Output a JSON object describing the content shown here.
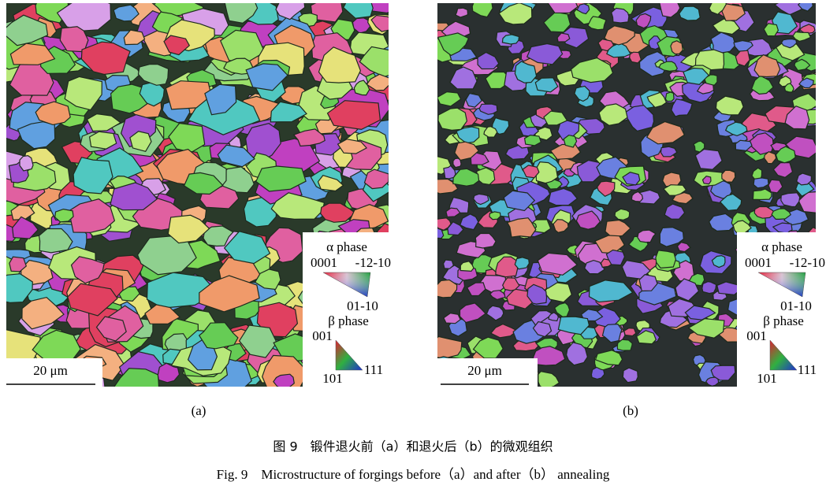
{
  "panels": [
    {
      "label": "(a)",
      "scale_bar": "20 μm",
      "legend": {
        "alpha_title": "α phase",
        "alpha_corners": [
          "0001",
          "-12-10",
          "01-10"
        ],
        "beta_title": "β phase",
        "beta_corners": [
          "001",
          "111",
          "101"
        ]
      }
    },
    {
      "label": "(b)",
      "scale_bar": "20 μm",
      "legend": {
        "alpha_title": "α phase",
        "alpha_corners": [
          "0001",
          "-12-10",
          "01-10"
        ],
        "beta_title": "β phase",
        "beta_corners": [
          "001",
          "111",
          "101"
        ]
      }
    }
  ],
  "caption": {
    "zh": "图 9　锻件退火前（a）和退火后（b）的微观组织",
    "en": "Fig. 9　Microstructure of forgings before（a）and after（b） annealing"
  }
}
